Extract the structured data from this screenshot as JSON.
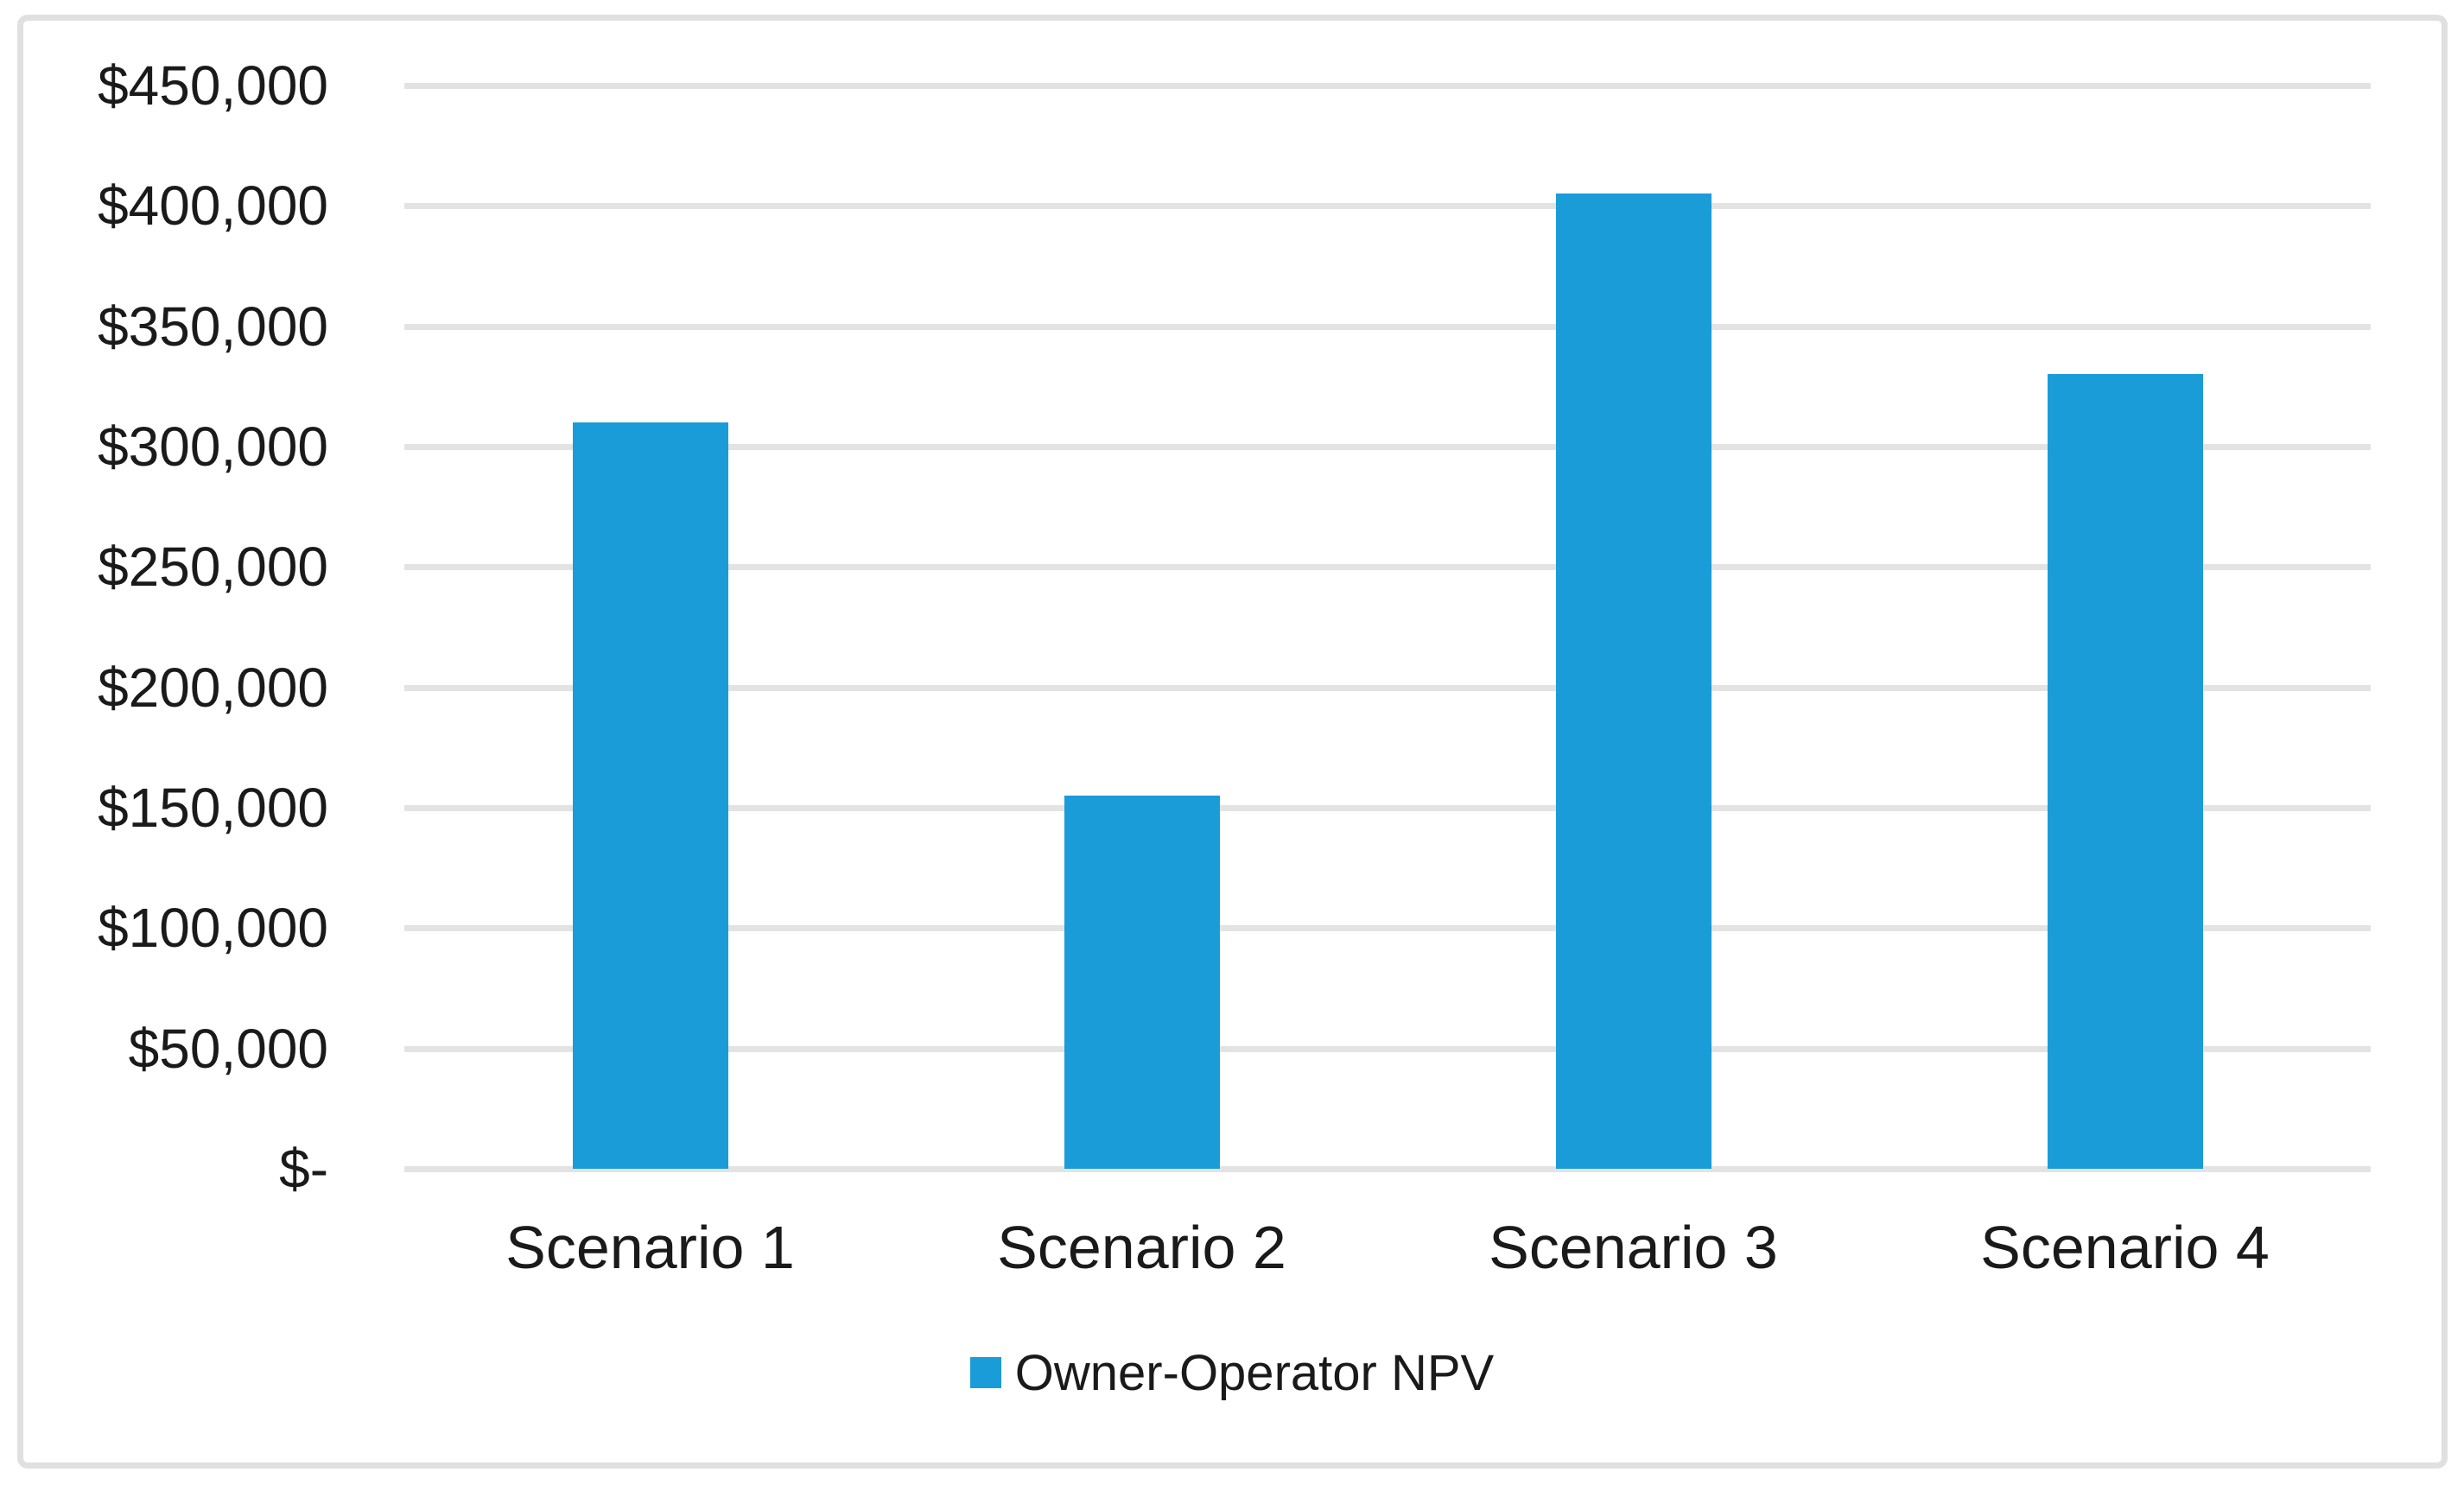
{
  "chart_data": {
    "type": "bar",
    "categories": [
      "Scenario 1",
      "Scenario 2",
      "Scenario 3",
      "Scenario 4"
    ],
    "series": [
      {
        "name": "Owner-Operator NPV",
        "values": [
          310000,
          155000,
          405000,
          330000
        ]
      }
    ],
    "title": "",
    "xlabel": "",
    "ylabel": "",
    "ylim": [
      0,
      450000
    ],
    "ytick_step": 50000,
    "ytick_labels": [
      "$-",
      "$50,000",
      "$100,000",
      "$150,000",
      "$200,000",
      "$250,000",
      "$300,000",
      "$350,000",
      "$400,000",
      "$450,000"
    ],
    "grid": true,
    "legend_position": "bottom"
  },
  "legend": {
    "label": "Owner-Operator NPV"
  },
  "colors": {
    "bar": "#1A9CD9",
    "gridline": "#E3E3E3",
    "frame_border": "#E0E0E0",
    "text": "#1A1A1A",
    "background": "#FFFFFF"
  }
}
